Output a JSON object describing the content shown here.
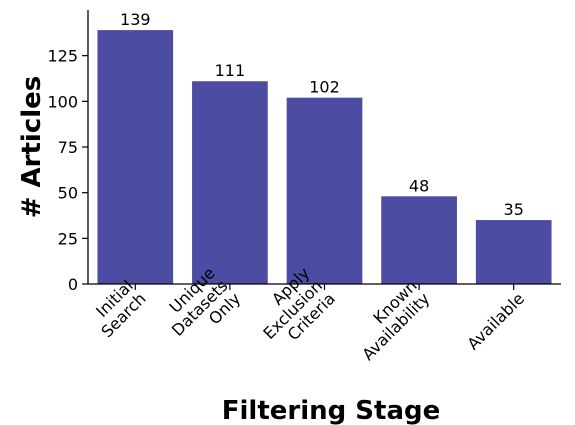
{
  "chart_data": {
    "type": "bar",
    "title": "",
    "xlabel": "Filtering Stage",
    "ylabel": "# Articles",
    "categories": [
      [
        "Initial",
        "Search"
      ],
      [
        "Unique",
        "Datasets",
        "Only"
      ],
      [
        "Apply",
        "Exclusion",
        "Criteria"
      ],
      [
        "Known",
        "Availability"
      ],
      [
        "Available"
      ]
    ],
    "values": [
      139,
      111,
      102,
      48,
      35
    ],
    "ylim": [
      0,
      150
    ],
    "yticks": [
      0,
      25,
      50,
      75,
      100,
      125
    ],
    "bar_color": "#4c4ca2",
    "grid": false,
    "legend": "none"
  }
}
